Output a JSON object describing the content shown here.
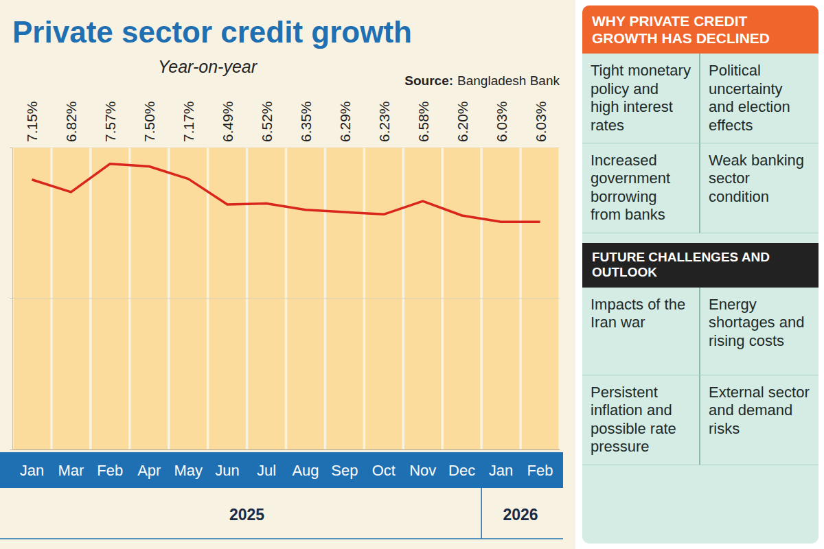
{
  "chart_data": {
    "type": "line",
    "title": "Private sector credit growth",
    "subtitle": "Year-on-year",
    "source_label": "Source:",
    "source": "Bangladesh Bank",
    "categories": [
      "Jan",
      "Mar",
      "Feb",
      "Apr",
      "May",
      "Jun",
      "Jul",
      "Aug",
      "Sep",
      "Oct",
      "Nov",
      "Dec",
      "Jan",
      "Feb"
    ],
    "values": [
      7.15,
      6.82,
      7.57,
      7.5,
      7.17,
      6.49,
      6.52,
      6.35,
      6.29,
      6.23,
      6.58,
      6.2,
      6.03,
      6.03
    ],
    "value_labels": [
      "7.15%",
      "6.82%",
      "7.57%",
      "7.50%",
      "7.17%",
      "6.49%",
      "6.52%",
      "6.35%",
      "6.29%",
      "6.23%",
      "6.58%",
      "6.20%",
      "6.03%",
      "6.03%"
    ],
    "color": "#d9261c",
    "data_labels": true,
    "x_groups": [
      {
        "label": "2025",
        "count": 12
      },
      {
        "label": "2026",
        "count": 2
      }
    ],
    "ylim": [
      0,
      8
    ],
    "yticks": [
      0,
      4,
      8
    ],
    "grid": true,
    "tick_labels": "x"
  },
  "panel": {
    "sections": [
      {
        "heading": "WHY PRIVATE CREDIT GROWTH HAS DECLINED",
        "items": [
          "Tight monetary policy and high interest rates",
          "Political uncertainty and election effects",
          "Increased government borrowing from banks",
          "Weak banking sector condition"
        ]
      },
      {
        "heading": "FUTURE CHALLENGES AND OUTLOOK",
        "items": [
          "Impacts of the Iran war",
          "Energy shortages and rising costs",
          "Persistent inflation and possible rate pressure",
          "External sector and demand risks"
        ]
      }
    ]
  }
}
